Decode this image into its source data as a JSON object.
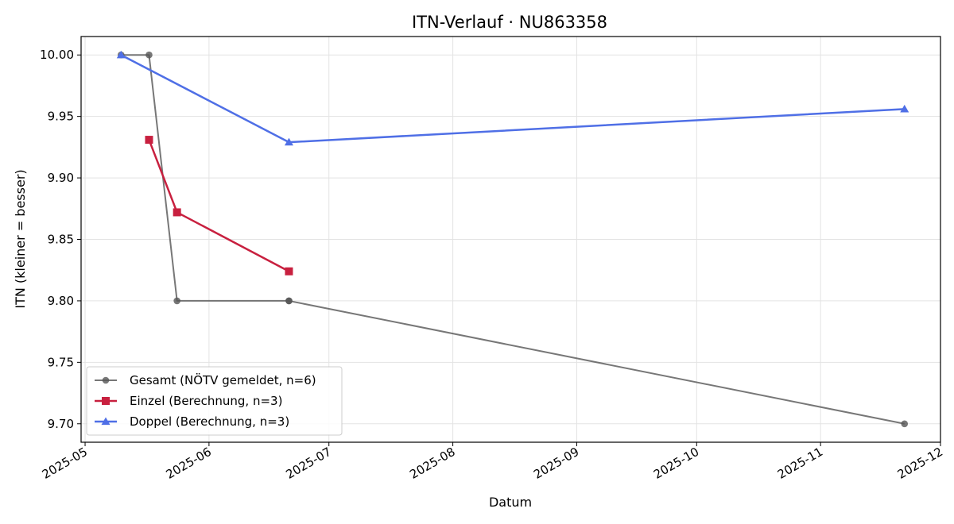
{
  "chart_data": {
    "type": "line",
    "title": "ITN-Verlauf · NU863358",
    "xlabel": "Datum",
    "ylabel": "ITN  (kleiner = besser)",
    "x_type": "date",
    "xlim": [
      "2025-04-30",
      "2025-12-01"
    ],
    "ylim": [
      9.685,
      10.015
    ],
    "x_ticks": [
      "2025-05-01",
      "2025-06-01",
      "2025-07-01",
      "2025-08-01",
      "2025-09-01",
      "2025-10-01",
      "2025-11-01",
      "2025-12-01"
    ],
    "x_tick_labels": [
      "2025-05",
      "2025-06",
      "2025-07",
      "2025-08",
      "2025-09",
      "2025-10",
      "2025-11",
      "2025-12"
    ],
    "y_ticks": [
      9.7,
      9.75,
      9.8,
      9.85,
      9.9,
      9.95,
      10.0
    ],
    "y_tick_labels": [
      "9.70",
      "9.75",
      "9.80",
      "9.85",
      "9.90",
      "9.95",
      "10.00"
    ],
    "grid": true,
    "legend_position": "lower-left",
    "series": [
      {
        "name": "Gesamt (NÖTV gemeldet, n=6)",
        "color": "#555555",
        "marker": "circle",
        "x": [
          "2025-05-10",
          "2025-05-17",
          "2025-05-24",
          "2025-06-21",
          "2025-06-21",
          "2025-11-22"
        ],
        "y": [
          10.0,
          10.0,
          9.8,
          9.8,
          9.8,
          9.7
        ]
      },
      {
        "name": "Einzel (Berechnung, n=3)",
        "color": "#c8203f",
        "marker": "square",
        "x": [
          "2025-05-17",
          "2025-05-24",
          "2025-06-21"
        ],
        "y": [
          9.931,
          9.872,
          9.824
        ]
      },
      {
        "name": "Doppel (Berechnung, n=3)",
        "color": "#4f6fe6",
        "marker": "triangle",
        "x": [
          "2025-05-10",
          "2025-06-21",
          "2025-11-22"
        ],
        "y": [
          10.0,
          9.929,
          9.956
        ]
      }
    ]
  }
}
